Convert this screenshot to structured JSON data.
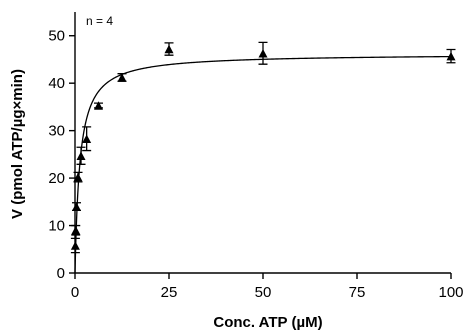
{
  "chart_data": {
    "type": "scatter",
    "title": "",
    "xlabel": "Conc. ATP (µM)",
    "ylabel": "V (pmol ATP/µg×min)",
    "annotation": "n = 4",
    "xlim": [
      0,
      100
    ],
    "ylim": [
      0,
      55
    ],
    "x_ticks": [
      0,
      25,
      50,
      75,
      100
    ],
    "y_ticks": [
      0,
      10,
      20,
      30,
      40,
      50
    ],
    "grid": false,
    "legend": "none",
    "marker": "triangle",
    "series": [
      {
        "points": [
          {
            "x": 0.1,
            "y": 5.8,
            "err": 1.5
          },
          {
            "x": 0.2,
            "y": 9.0,
            "err": 1.0
          },
          {
            "x": 0.4,
            "y": 14.0,
            "err": 0.8
          },
          {
            "x": 0.8,
            "y": 20.2,
            "err": 1.0
          },
          {
            "x": 1.6,
            "y": 24.7,
            "err": 1.8
          },
          {
            "x": 3.1,
            "y": 28.3,
            "err": 2.5
          },
          {
            "x": 6.25,
            "y": 35.3,
            "err": 0.5
          },
          {
            "x": 12.5,
            "y": 41.2,
            "err": 0.8
          },
          {
            "x": 25,
            "y": 47.2,
            "err": 1.3
          },
          {
            "x": 50,
            "y": 46.3,
            "err": 2.3
          },
          {
            "x": 100,
            "y": 45.7,
            "err": 1.4
          }
        ]
      }
    ],
    "fit": {
      "model": "michaelis-menten",
      "vmax": 46.2,
      "km": 1.3
    }
  }
}
